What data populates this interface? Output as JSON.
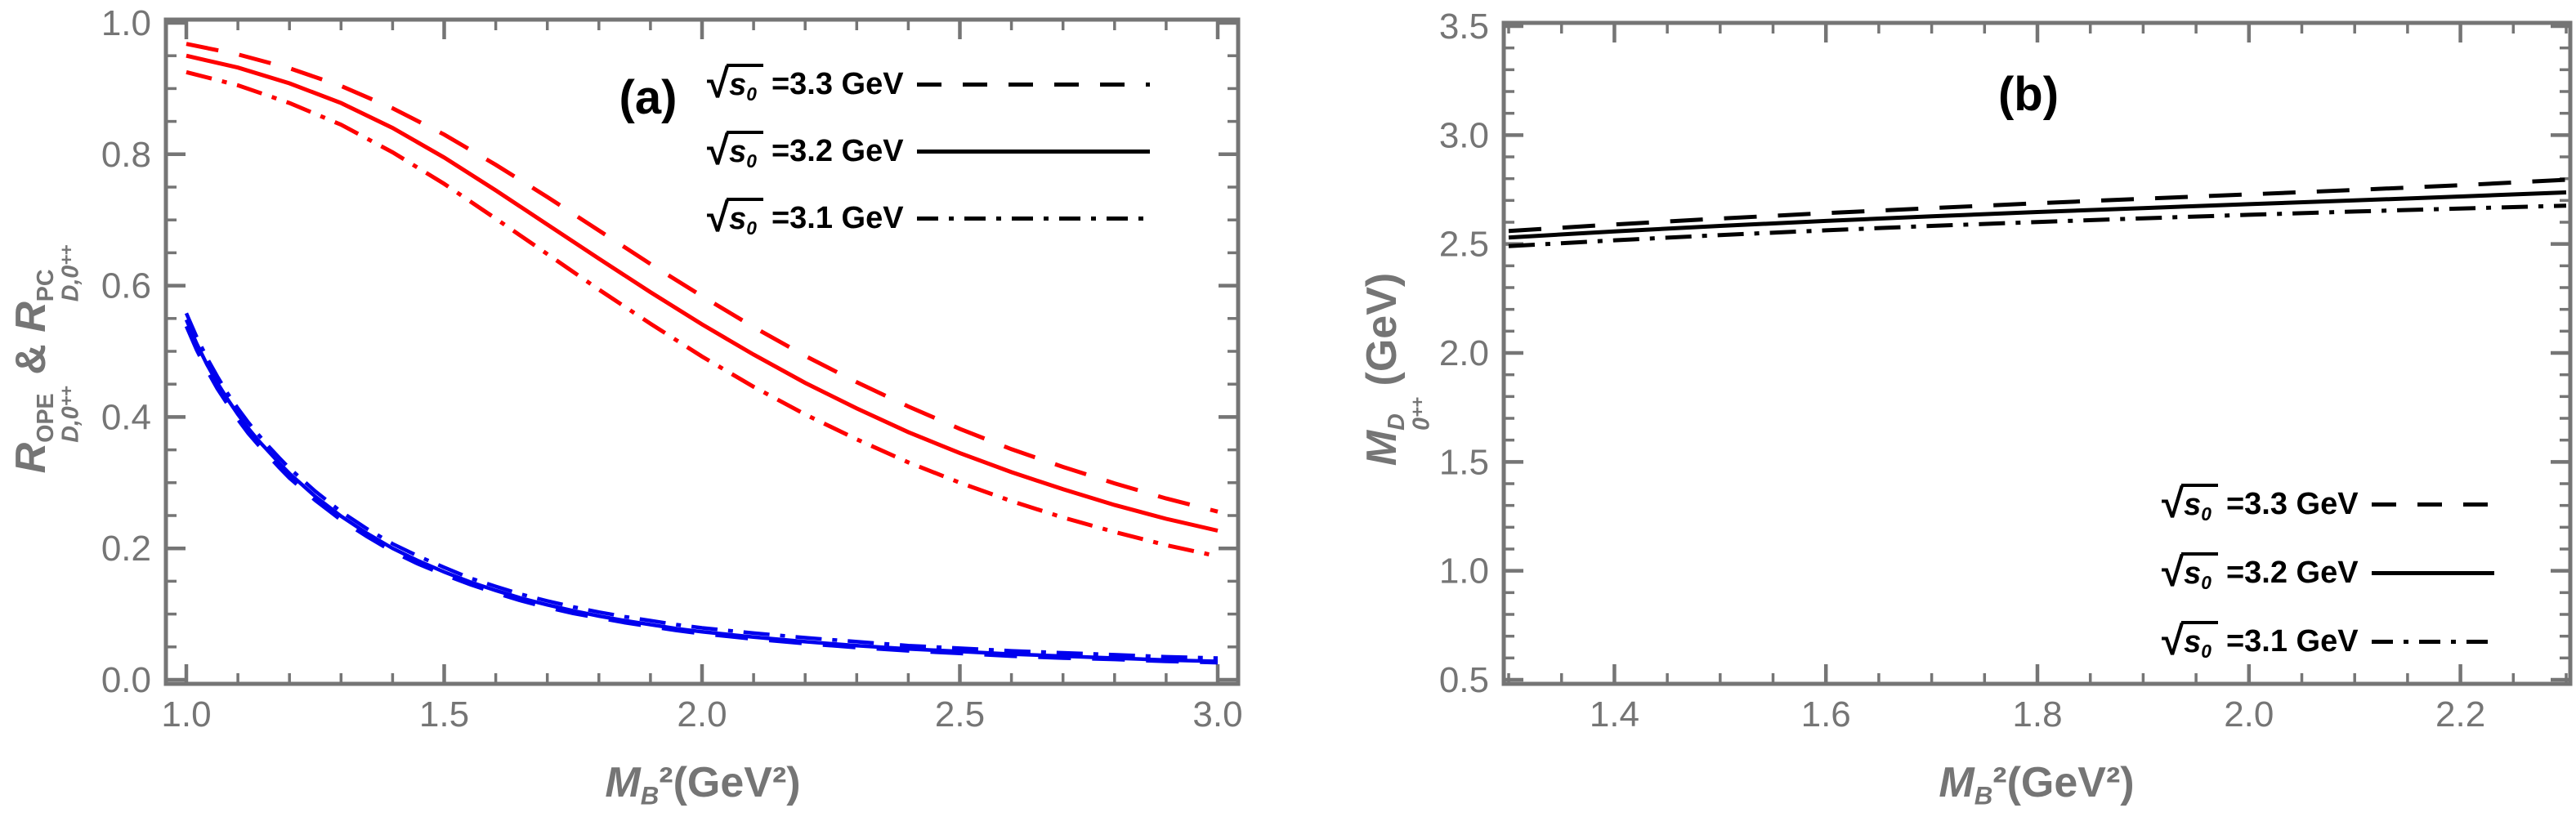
{
  "figure": {
    "background": "#ffffff",
    "frame_color": "#757575",
    "tick_label_color": "#757575",
    "axis_label_color": "#757575",
    "red": "#ff0000",
    "blue": "#0000ee",
    "black": "#000000"
  },
  "legend": {
    "sqrt_sign": "√",
    "s_symbol": "s",
    "s_subscript": "0",
    "items": [
      {
        "value_label": "=3.3 GeV",
        "style": "dashed"
      },
      {
        "value_label": "=3.2 GeV",
        "style": "solid"
      },
      {
        "value_label": "=3.1 GeV",
        "style": "dashdot"
      }
    ]
  },
  "panel_a": {
    "label": "(a)",
    "x_axis": {
      "base": "M",
      "sub": "B",
      "rest": "²(GeV²)"
    },
    "y_axis": {
      "base1": "R",
      "sup1": "OPE",
      "sub1": "D,0",
      "sub1_pp": "++",
      "amp": "&",
      "base2": "R",
      "sup2": "PC",
      "sub2": "D,0",
      "sub2_pp": "++"
    }
  },
  "panel_b": {
    "label": "(b)",
    "x_axis": {
      "base": "M",
      "sub": "B",
      "rest": "²(GeV²)"
    },
    "y_axis": {
      "base": "M",
      "sup": "D",
      "sub": "0",
      "sub_pp": "++",
      "rest": "(GeV)"
    }
  },
  "chart_data": [
    {
      "id": "a",
      "type": "line",
      "title": "(a)",
      "xlabel": "M_B^2 (GeV^2)",
      "ylabel": "R^OPE_(D,0++) & R^PC_(D,0++)",
      "xlim": [
        1.0,
        3.0
      ],
      "ylim": [
        0.0,
        1.0
      ],
      "grid": false,
      "legend_position": "top-right",
      "x_major_ticks": [
        1.0,
        1.5,
        2.0,
        2.5,
        3.0
      ],
      "x_major_labels": [
        "1.0",
        "1.5",
        "2.0",
        "2.5",
        "3.0"
      ],
      "x_minor_step": 0.1,
      "y_major_ticks": [
        0.0,
        0.2,
        0.4,
        0.6,
        0.8,
        1.0
      ],
      "y_major_labels": [
        "0.0",
        "0.2",
        "0.4",
        "0.6",
        "0.8",
        "1.0"
      ],
      "y_minor_step": 0.05,
      "series": [
        {
          "name": "sqrt(s0)=3.3 GeV (OPE ratio)",
          "color": "#ff0000",
          "style": "dashed",
          "x": [
            1.0,
            1.1,
            1.2,
            1.3,
            1.4,
            1.5,
            1.6,
            1.7,
            1.8,
            1.9,
            2.0,
            2.1,
            2.2,
            2.3,
            2.4,
            2.5,
            2.6,
            2.7,
            2.8,
            2.9,
            3.0
          ],
          "y": [
            0.968,
            0.952,
            0.931,
            0.904,
            0.87,
            0.83,
            0.784,
            0.735,
            0.684,
            0.633,
            0.584,
            0.537,
            0.493,
            0.453,
            0.416,
            0.382,
            0.351,
            0.324,
            0.299,
            0.276,
            0.256
          ]
        },
        {
          "name": "sqrt(s0)=3.2 GeV (OPE ratio)",
          "color": "#ff0000",
          "style": "solid",
          "x": [
            1.0,
            1.1,
            1.2,
            1.3,
            1.4,
            1.5,
            1.6,
            1.7,
            1.8,
            1.9,
            2.0,
            2.1,
            2.2,
            2.3,
            2.4,
            2.5,
            2.6,
            2.7,
            2.8,
            2.9,
            3.0
          ],
          "y": [
            0.95,
            0.932,
            0.908,
            0.878,
            0.84,
            0.795,
            0.745,
            0.693,
            0.641,
            0.59,
            0.541,
            0.495,
            0.452,
            0.413,
            0.377,
            0.345,
            0.316,
            0.29,
            0.266,
            0.245,
            0.227
          ]
        },
        {
          "name": "sqrt(s0)=3.1 GeV (OPE ratio)",
          "color": "#ff0000",
          "style": "dashdot",
          "x": [
            1.0,
            1.1,
            1.2,
            1.3,
            1.4,
            1.5,
            1.6,
            1.7,
            1.8,
            1.9,
            2.0,
            2.1,
            2.2,
            2.3,
            2.4,
            2.5,
            2.6,
            2.7,
            2.8,
            2.9,
            3.0
          ],
          "y": [
            0.925,
            0.905,
            0.878,
            0.845,
            0.803,
            0.755,
            0.702,
            0.648,
            0.594,
            0.542,
            0.492,
            0.446,
            0.404,
            0.366,
            0.331,
            0.3,
            0.272,
            0.247,
            0.225,
            0.205,
            0.188
          ]
        },
        {
          "name": "sqrt(s0)=3.3 GeV (PC ratio)",
          "color": "#0000ee",
          "style": "dashed",
          "x": [
            1.0,
            1.02,
            1.04,
            1.06,
            1.08,
            1.1,
            1.12,
            1.14,
            1.16,
            1.18,
            1.2,
            1.25,
            1.3,
            1.35,
            1.4,
            1.45,
            1.5,
            1.55,
            1.6,
            1.65,
            1.7,
            1.75,
            1.8,
            1.85,
            1.9,
            1.95,
            2.0,
            2.1,
            2.2,
            2.3,
            2.4,
            2.5,
            2.6,
            2.7,
            2.8,
            2.9,
            3.0
          ],
          "y": [
            0.538,
            0.502,
            0.471,
            0.443,
            0.419,
            0.396,
            0.375,
            0.357,
            0.34,
            0.323,
            0.307,
            0.273,
            0.243,
            0.218,
            0.195,
            0.176,
            0.16,
            0.145,
            0.132,
            0.12,
            0.11,
            0.101,
            0.094,
            0.087,
            0.081,
            0.075,
            0.07,
            0.062,
            0.055,
            0.049,
            0.044,
            0.04,
            0.036,
            0.033,
            0.031,
            0.028,
            0.026
          ]
        },
        {
          "name": "sqrt(s0)=3.2 GeV (PC ratio)",
          "color": "#0000ee",
          "style": "solid",
          "x": [
            1.0,
            1.02,
            1.04,
            1.06,
            1.08,
            1.1,
            1.12,
            1.14,
            1.16,
            1.18,
            1.2,
            1.25,
            1.3,
            1.35,
            1.4,
            1.45,
            1.5,
            1.55,
            1.6,
            1.65,
            1.7,
            1.75,
            1.8,
            1.85,
            1.9,
            1.95,
            2.0,
            2.1,
            2.2,
            2.3,
            2.4,
            2.5,
            2.6,
            2.7,
            2.8,
            2.9,
            3.0
          ],
          "y": [
            0.548,
            0.512,
            0.48,
            0.452,
            0.427,
            0.404,
            0.383,
            0.364,
            0.347,
            0.33,
            0.314,
            0.279,
            0.249,
            0.223,
            0.2,
            0.181,
            0.164,
            0.149,
            0.136,
            0.124,
            0.114,
            0.105,
            0.097,
            0.09,
            0.084,
            0.078,
            0.073,
            0.065,
            0.058,
            0.052,
            0.047,
            0.043,
            0.039,
            0.036,
            0.033,
            0.03,
            0.028
          ]
        },
        {
          "name": "sqrt(s0)=3.1 GeV (PC ratio)",
          "color": "#0000ee",
          "style": "dashdot",
          "x": [
            1.0,
            1.02,
            1.04,
            1.06,
            1.08,
            1.1,
            1.12,
            1.14,
            1.16,
            1.18,
            1.2,
            1.25,
            1.3,
            1.35,
            1.4,
            1.45,
            1.5,
            1.55,
            1.6,
            1.65,
            1.7,
            1.75,
            1.8,
            1.85,
            1.9,
            1.95,
            2.0,
            2.1,
            2.2,
            2.3,
            2.4,
            2.5,
            2.6,
            2.7,
            2.8,
            2.9,
            3.0
          ],
          "y": [
            0.558,
            0.522,
            0.49,
            0.462,
            0.436,
            0.413,
            0.392,
            0.373,
            0.355,
            0.338,
            0.322,
            0.287,
            0.256,
            0.23,
            0.207,
            0.188,
            0.171,
            0.155,
            0.142,
            0.13,
            0.12,
            0.111,
            0.103,
            0.096,
            0.09,
            0.084,
            0.079,
            0.071,
            0.064,
            0.058,
            0.052,
            0.048,
            0.044,
            0.041,
            0.038,
            0.035,
            0.033
          ]
        }
      ]
    },
    {
      "id": "b",
      "type": "line",
      "title": "(b)",
      "xlabel": "M_B^2 (GeV^2)",
      "ylabel": "M^D_(0++) (GeV)",
      "xlim": [
        1.3,
        2.3
      ],
      "ylim": [
        0.5,
        3.5
      ],
      "grid": false,
      "legend_position": "bottom-right",
      "x_major_ticks": [
        1.4,
        1.6,
        1.8,
        2.0,
        2.2
      ],
      "x_major_labels": [
        "1.4",
        "1.6",
        "1.8",
        "2.0",
        "2.2"
      ],
      "x_minor_step": 0.05,
      "y_major_ticks": [
        0.5,
        1.0,
        1.5,
        2.0,
        2.5,
        3.0,
        3.5
      ],
      "y_major_labels": [
        "0.5",
        "1.0",
        "1.5",
        "2.0",
        "2.5",
        "3.0",
        "3.5"
      ],
      "y_minor_step": 0.1,
      "series": [
        {
          "name": "sqrt(s0)=3.3 GeV (mass)",
          "color": "#000000",
          "style": "dashed",
          "x": [
            1.3,
            1.4,
            1.5,
            1.6,
            1.7,
            1.8,
            1.9,
            2.0,
            2.1,
            2.2,
            2.3
          ],
          "y": [
            2.56,
            2.59,
            2.617,
            2.642,
            2.665,
            2.687,
            2.708,
            2.728,
            2.748,
            2.77,
            2.795
          ]
        },
        {
          "name": "sqrt(s0)=3.2 GeV (mass)",
          "color": "#000000",
          "style": "solid",
          "x": [
            1.3,
            1.4,
            1.5,
            1.6,
            1.7,
            1.8,
            1.9,
            2.0,
            2.1,
            2.2,
            2.3
          ],
          "y": [
            2.53,
            2.558,
            2.583,
            2.606,
            2.627,
            2.647,
            2.665,
            2.683,
            2.7,
            2.718,
            2.737
          ]
        },
        {
          "name": "sqrt(s0)=3.1 GeV (mass)",
          "color": "#000000",
          "style": "dashdot",
          "x": [
            1.3,
            1.4,
            1.5,
            1.6,
            1.7,
            1.8,
            1.9,
            2.0,
            2.1,
            2.2,
            2.3
          ],
          "y": [
            2.49,
            2.517,
            2.541,
            2.563,
            2.583,
            2.601,
            2.618,
            2.634,
            2.649,
            2.663,
            2.676
          ]
        }
      ]
    }
  ]
}
